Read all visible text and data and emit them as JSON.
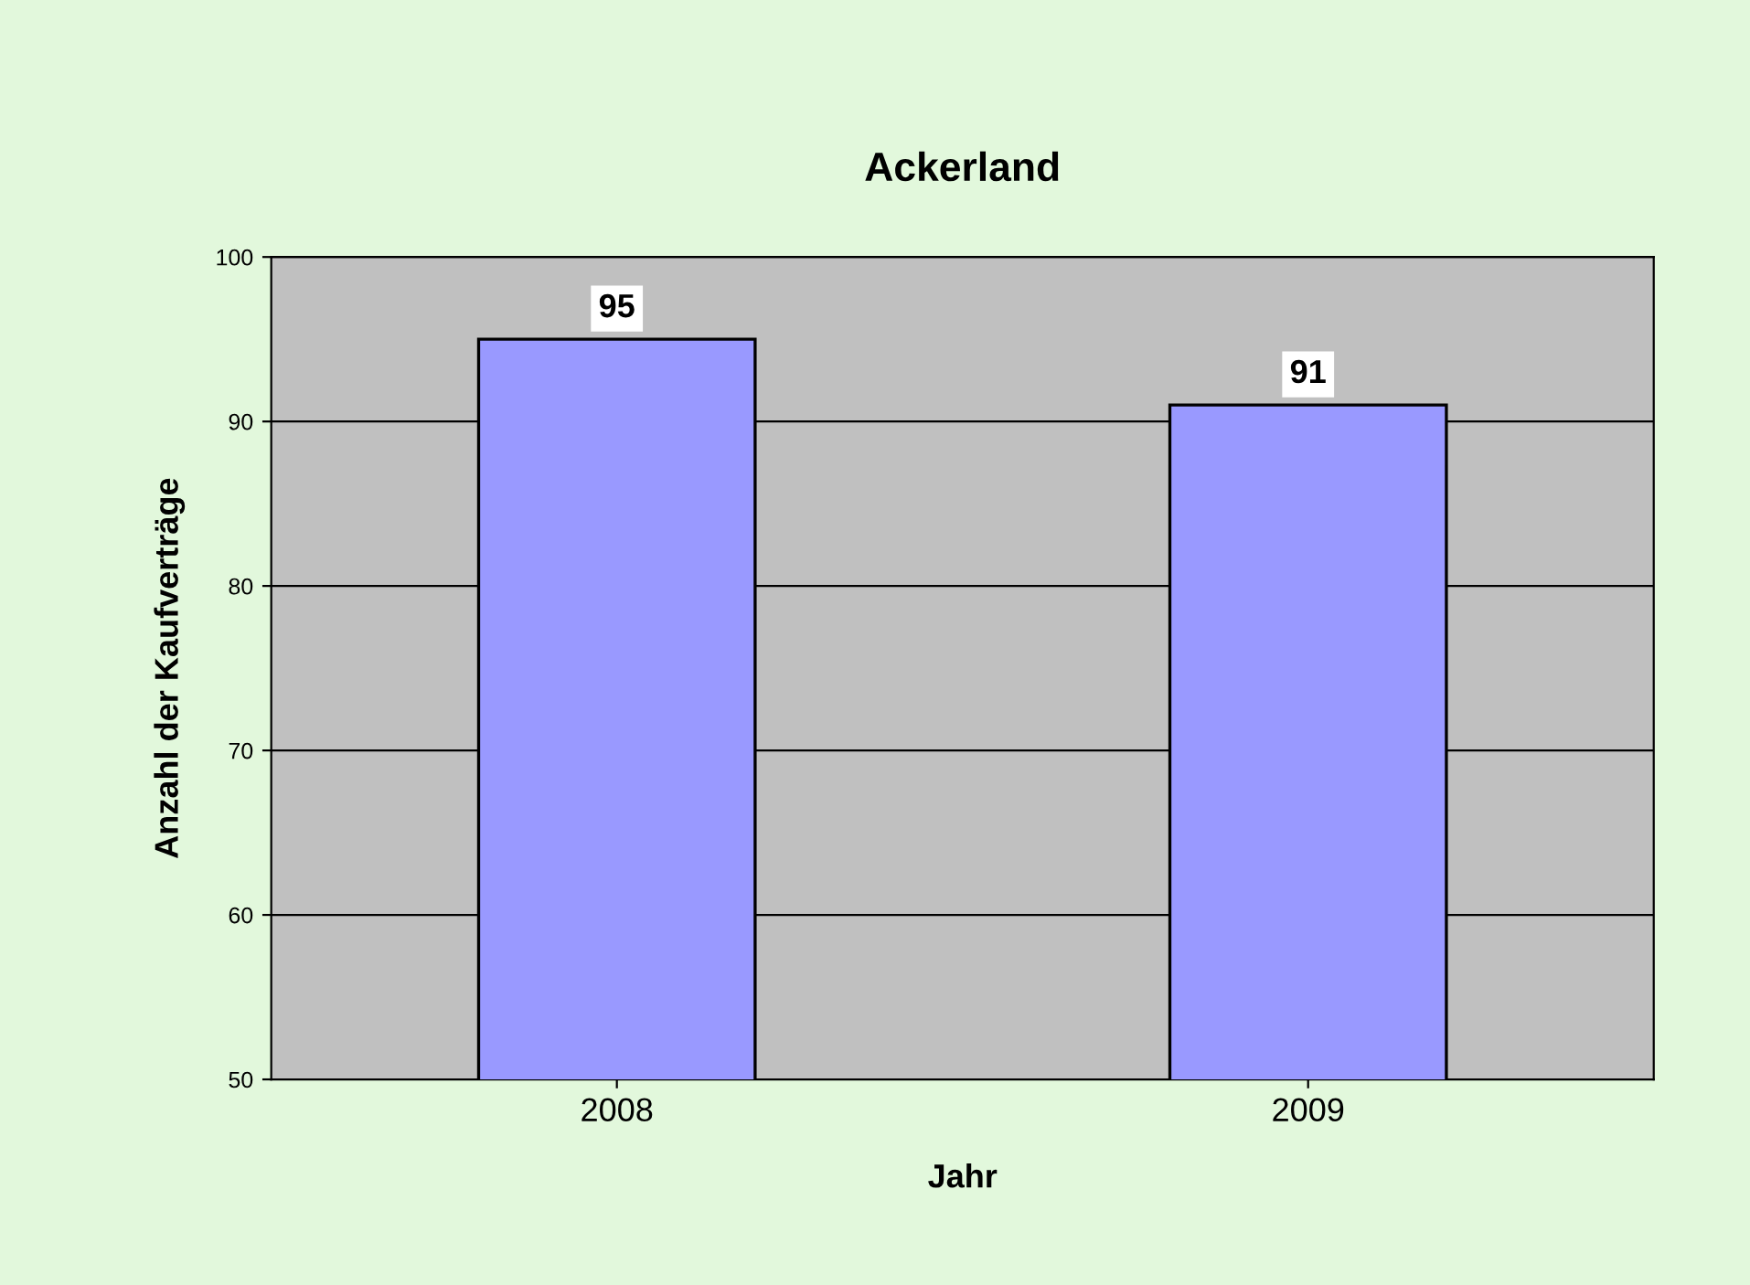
{
  "chart_data": {
    "type": "bar",
    "title": "Ackerland",
    "xlabel": "Jahr",
    "ylabel": "Anzahl der Kaufverträge",
    "categories": [
      "2008",
      "2009"
    ],
    "values": [
      95,
      91
    ],
    "color": "#9999ff",
    "ylim": [
      50,
      100
    ],
    "yticks": [
      50,
      60,
      70,
      80,
      90,
      100
    ],
    "grid": "y",
    "data_labels": true
  }
}
